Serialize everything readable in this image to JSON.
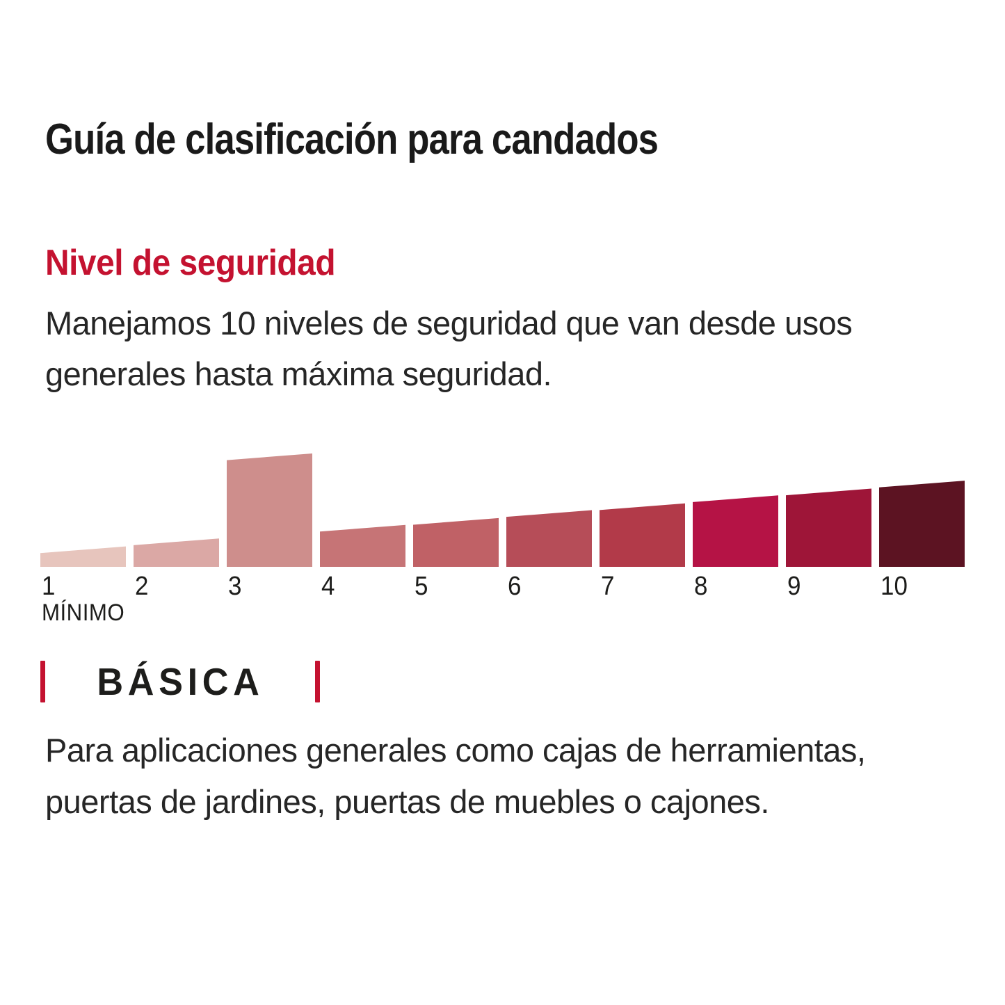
{
  "title": "Guía de clasificación para candados",
  "security": {
    "heading": "Nivel de seguridad",
    "heading_color": "#c41230",
    "description": "Manejamos 10 niveles de seguridad que van desde usos generales hasta máxima seguridad.",
    "description_lines": [
      "Manejamos 10 niveles de seguridad que van desde usos",
      "generales hasta máxima seguridad."
    ]
  },
  "chart_data": {
    "type": "bar",
    "title": "Nivel de seguridad",
    "categories": [
      "1",
      "2",
      "3",
      "4",
      "5",
      "6",
      "7",
      "8",
      "9",
      "10"
    ],
    "values": [
      18,
      25,
      100,
      37,
      43,
      50,
      56,
      63,
      69,
      76
    ],
    "bar_colors": [
      "#e7c5bd",
      "#dba8a5",
      "#ce8e8c",
      "#c67476",
      "#c06166",
      "#b64d58",
      "#b23a49",
      "#b51345",
      "#9e1538",
      "#5c1322"
    ],
    "highlight_level": "3",
    "min_label": "MÍNIMO",
    "xlabel": "",
    "ylabel": "",
    "ylim": [
      0,
      100
    ],
    "grid": false,
    "legend": false,
    "notes": "Wedge-shaped bars with sloped tops rising from level 1 (lightest pink, minimum) to level 10 (darkest maroon, maximum); level 3 spikes to full height."
  },
  "level": {
    "label": "BÁSICA",
    "tick_color": "#c41230",
    "description": "Para aplicaciones generales como cajas de herramientas, puertas de jardines, puertas de muebles o cajones.",
    "description_lines": [
      "Para aplicaciones generales como cajas de herramientas,",
      "puertas de jardines, puertas de muebles o cajones."
    ]
  }
}
